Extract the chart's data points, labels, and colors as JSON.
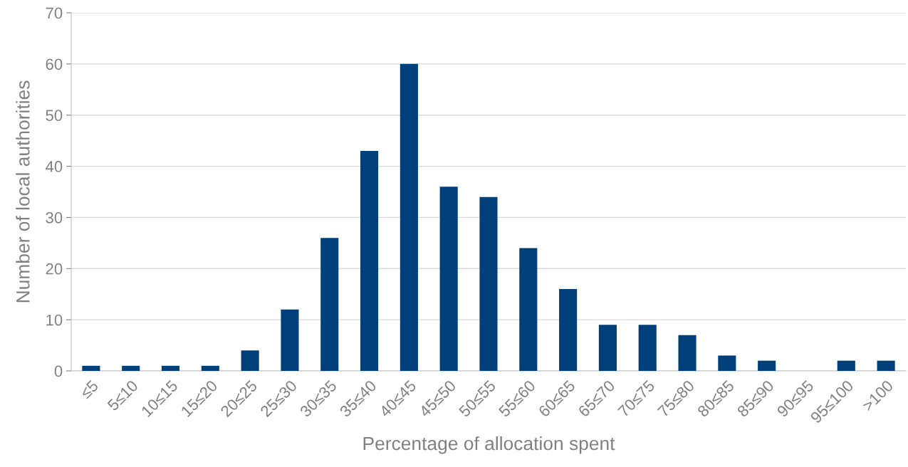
{
  "chart_data": {
    "type": "bar",
    "xlabel": "Percentage of allocation spent",
    "ylabel": "Number of local authorities",
    "categories": [
      "≤5",
      "5≤10",
      "10≤15",
      "15≤20",
      "20≤25",
      "25≤30",
      "30≤35",
      "35≤40",
      "40≤45",
      "45≤50",
      "50≤55",
      "55≤60",
      "60≤65",
      "65≤70",
      "70≤75",
      "75≤80",
      "80≤85",
      "85≤90",
      "90≤95",
      "95≤100",
      ">100"
    ],
    "values": [
      1,
      1,
      1,
      1,
      4,
      12,
      26,
      43,
      60,
      36,
      34,
      24,
      16,
      9,
      9,
      7,
      3,
      2,
      0,
      2,
      2
    ],
    "color": "#00407a",
    "ylim": [
      0,
      70
    ],
    "yticks": [
      0,
      10,
      20,
      30,
      40,
      50,
      60,
      70
    ],
    "grid": "y"
  }
}
